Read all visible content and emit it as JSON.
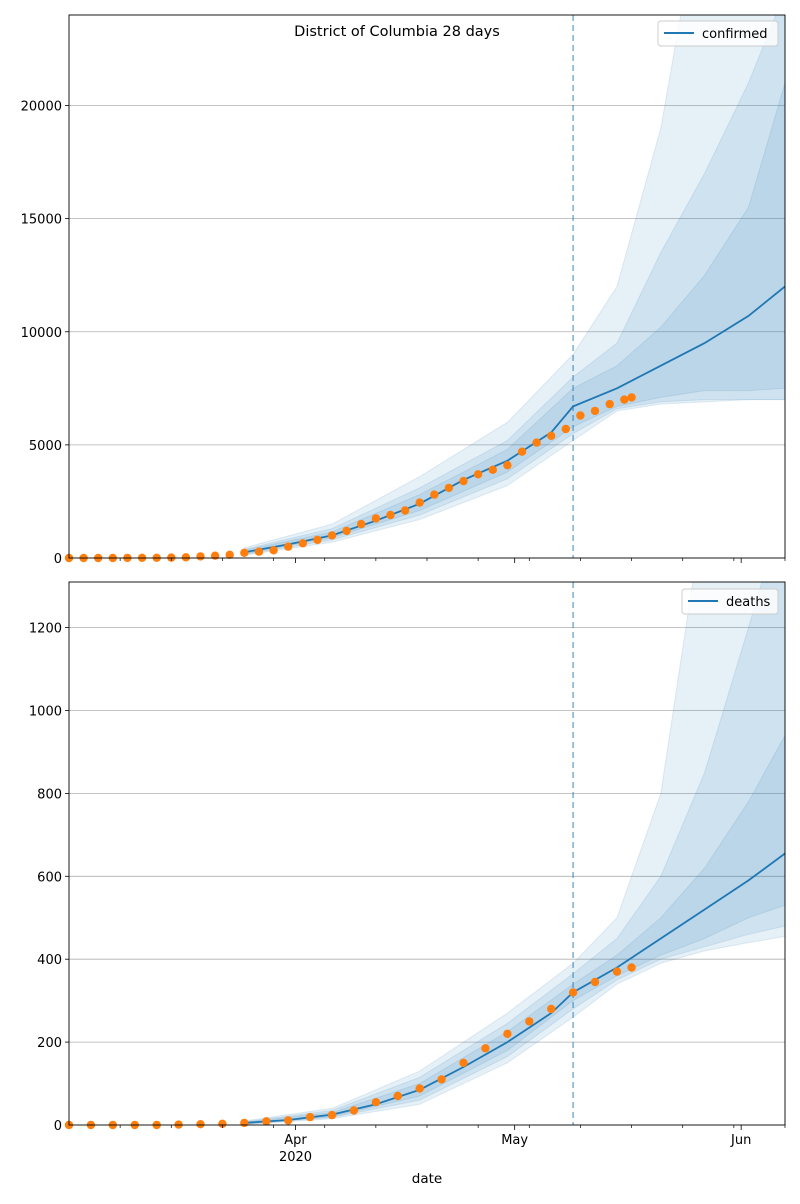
{
  "chart_data": [
    {
      "type": "line",
      "title": "District of Columbia 28 days",
      "xlabel": "",
      "ylabel": "",
      "ylim": [
        0,
        24000
      ],
      "yticks": [
        0,
        5000,
        10000,
        15000,
        20000
      ],
      "grid": "horizontal",
      "legend": {
        "position": "top-right",
        "entries": [
          {
            "label": "confirmed",
            "color": "#1f77b4"
          }
        ]
      },
      "vline_date": "2020-05-09",
      "x_start": "2020-03-01",
      "x_end": "2020-06-07",
      "observed": {
        "name": "observed",
        "color": "#ff7f0e",
        "x": [
          "2020-03-01",
          "2020-03-03",
          "2020-03-05",
          "2020-03-07",
          "2020-03-09",
          "2020-03-11",
          "2020-03-13",
          "2020-03-15",
          "2020-03-17",
          "2020-03-19",
          "2020-03-21",
          "2020-03-23",
          "2020-03-25",
          "2020-03-27",
          "2020-03-29",
          "2020-03-31",
          "2020-04-02",
          "2020-04-04",
          "2020-04-06",
          "2020-04-08",
          "2020-04-10",
          "2020-04-12",
          "2020-04-14",
          "2020-04-16",
          "2020-04-18",
          "2020-04-20",
          "2020-04-22",
          "2020-04-24",
          "2020-04-26",
          "2020-04-28",
          "2020-04-30",
          "2020-05-02",
          "2020-05-04",
          "2020-05-06",
          "2020-05-08",
          "2020-05-10",
          "2020-05-12",
          "2020-05-14",
          "2020-05-16",
          "2020-05-17"
        ],
        "values": [
          0,
          0,
          0,
          0,
          3,
          10,
          10,
          18,
          30,
          70,
          100,
          140,
          230,
          280,
          340,
          500,
          650,
          800,
          1000,
          1200,
          1500,
          1750,
          1900,
          2100,
          2450,
          2800,
          3100,
          3400,
          3700,
          3900,
          4100,
          4700,
          5100,
          5400,
          5700,
          6300,
          6500,
          6800,
          7000,
          7100
        ]
      },
      "series": [
        {
          "name": "confirmed",
          "color": "#1f77b4",
          "x": [
            "2020-03-25",
            "2020-03-31",
            "2020-04-06",
            "2020-04-12",
            "2020-04-18",
            "2020-04-24",
            "2020-04-30",
            "2020-05-06",
            "2020-05-09",
            "2020-05-15",
            "2020-05-21",
            "2020-05-27",
            "2020-06-02",
            "2020-06-07"
          ],
          "values": [
            250,
            600,
            1000,
            1650,
            2400,
            3450,
            4300,
            5550,
            6700,
            7500,
            8500,
            9500,
            10700,
            12000
          ]
        }
      ],
      "bands": [
        {
          "x": [
            "2020-03-25",
            "2020-04-06",
            "2020-04-18",
            "2020-04-30",
            "2020-05-09",
            "2020-05-15",
            "2020-05-21",
            "2020-05-27",
            "2020-06-02",
            "2020-06-07"
          ],
          "low": [
            180,
            900,
            2100,
            3800,
            5800,
            6700,
            7100,
            7400,
            7400,
            7500
          ],
          "high": [
            340,
            1150,
            2800,
            4800,
            7500,
            8500,
            10200,
            12500,
            15500,
            21000
          ]
        },
        {
          "x": [
            "2020-03-25",
            "2020-04-06",
            "2020-04-18",
            "2020-04-30",
            "2020-05-09",
            "2020-05-15",
            "2020-05-21",
            "2020-05-27",
            "2020-06-02",
            "2020-06-07"
          ],
          "low": [
            150,
            800,
            1900,
            3500,
            5500,
            6600,
            6900,
            7000,
            7000,
            7000
          ],
          "high": [
            380,
            1300,
            3100,
            5200,
            8000,
            9500,
            13500,
            17000,
            21000,
            25000
          ]
        },
        {
          "x": [
            "2020-03-25",
            "2020-04-06",
            "2020-04-18",
            "2020-04-30",
            "2020-05-09",
            "2020-05-15",
            "2020-05-21",
            "2020-05-27",
            "2020-06-02",
            "2020-06-07"
          ],
          "low": [
            120,
            700,
            1700,
            3200,
            5200,
            6500,
            6800,
            6900,
            7000,
            7000
          ],
          "high": [
            450,
            1500,
            3600,
            6000,
            9000,
            12000,
            19000,
            30000,
            30000,
            30000
          ]
        }
      ]
    },
    {
      "type": "line",
      "title": "",
      "xlabel": "date",
      "ylabel": "",
      "ylim": [
        0,
        1310
      ],
      "yticks": [
        0,
        200,
        400,
        600,
        800,
        1000,
        1200
      ],
      "grid": "horizontal",
      "legend": {
        "position": "top-right",
        "entries": [
          {
            "label": "deaths",
            "color": "#1f77b4"
          }
        ]
      },
      "vline_date": "2020-05-09",
      "x_start": "2020-03-01",
      "x_end": "2020-06-07",
      "xticks": [
        {
          "date": "2020-04-01",
          "label": "Apr",
          "sublabel": "2020"
        },
        {
          "date": "2020-05-01",
          "label": "May",
          "sublabel": ""
        },
        {
          "date": "2020-06-01",
          "label": "Jun",
          "sublabel": ""
        }
      ],
      "minor_xticks": [
        "2020-03-08",
        "2020-03-15",
        "2020-03-22",
        "2020-03-29",
        "2020-04-05",
        "2020-04-12",
        "2020-04-19",
        "2020-04-26",
        "2020-05-03",
        "2020-05-10",
        "2020-05-17",
        "2020-05-24",
        "2020-05-31",
        "2020-06-07"
      ],
      "observed": {
        "name": "observed",
        "color": "#ff7f0e",
        "x": [
          "2020-03-01",
          "2020-03-04",
          "2020-03-07",
          "2020-03-10",
          "2020-03-13",
          "2020-03-16",
          "2020-03-19",
          "2020-03-22",
          "2020-03-25",
          "2020-03-28",
          "2020-03-31",
          "2020-04-03",
          "2020-04-06",
          "2020-04-09",
          "2020-04-12",
          "2020-04-15",
          "2020-04-18",
          "2020-04-21",
          "2020-04-24",
          "2020-04-27",
          "2020-04-30",
          "2020-05-03",
          "2020-05-06",
          "2020-05-09",
          "2020-05-12",
          "2020-05-15",
          "2020-05-17"
        ],
        "values": [
          0,
          0,
          0,
          0,
          0,
          1,
          2,
          3,
          5,
          9,
          11,
          19,
          24,
          35,
          55,
          70,
          88,
          110,
          150,
          185,
          220,
          250,
          280,
          320,
          345,
          370,
          380
        ]
      },
      "series": [
        {
          "name": "deaths",
          "color": "#1f77b4",
          "x": [
            "2020-03-25",
            "2020-03-31",
            "2020-04-06",
            "2020-04-12",
            "2020-04-18",
            "2020-04-24",
            "2020-04-30",
            "2020-05-06",
            "2020-05-09",
            "2020-05-15",
            "2020-05-21",
            "2020-05-27",
            "2020-06-02",
            "2020-06-07"
          ],
          "values": [
            5,
            12,
            25,
            50,
            85,
            140,
            200,
            270,
            320,
            380,
            450,
            520,
            590,
            655
          ]
        }
      ],
      "bands": [
        {
          "x": [
            "2020-03-25",
            "2020-04-06",
            "2020-04-18",
            "2020-04-30",
            "2020-05-09",
            "2020-05-15",
            "2020-05-21",
            "2020-05-27",
            "2020-06-02",
            "2020-06-07"
          ],
          "low": [
            3,
            20,
            70,
            180,
            300,
            360,
            410,
            450,
            500,
            530
          ],
          "high": [
            7,
            30,
            100,
            225,
            340,
            410,
            500,
            620,
            780,
            940
          ]
        },
        {
          "x": [
            "2020-03-25",
            "2020-04-06",
            "2020-04-18",
            "2020-04-30",
            "2020-05-09",
            "2020-05-15",
            "2020-05-21",
            "2020-05-27",
            "2020-06-02",
            "2020-06-07"
          ],
          "low": [
            2,
            18,
            60,
            165,
            280,
            350,
            400,
            430,
            460,
            480
          ],
          "high": [
            8,
            35,
            115,
            245,
            365,
            450,
            600,
            850,
            1200,
            1500
          ]
        },
        {
          "x": [
            "2020-03-25",
            "2020-04-06",
            "2020-04-18",
            "2020-04-30",
            "2020-05-09",
            "2020-05-15",
            "2020-05-21",
            "2020-05-27",
            "2020-06-02",
            "2020-06-07"
          ],
          "low": [
            1,
            15,
            50,
            150,
            260,
            340,
            390,
            420,
            440,
            455
          ],
          "high": [
            10,
            40,
            130,
            270,
            390,
            500,
            800,
            1500,
            1600,
            1600
          ]
        }
      ]
    }
  ]
}
